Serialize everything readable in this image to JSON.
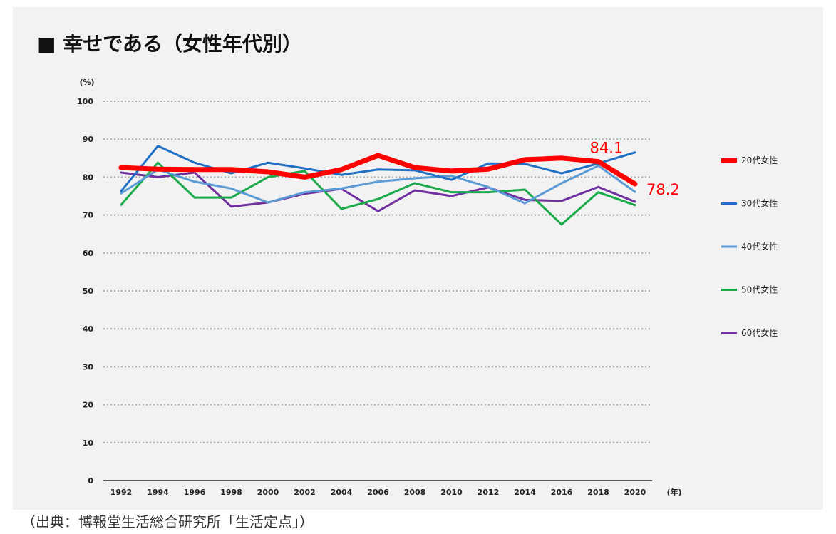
{
  "title": "■ 幸せである（女性年代別）",
  "source": "（出典：博報堂生活総合研究所「生活定点」）",
  "chart_data": {
    "type": "line",
    "title": "■ 幸せである（女性年代別）",
    "ylabel": "(%)",
    "xlabel": "(年)",
    "ylim": [
      0,
      100
    ],
    "yticks": [
      0,
      10,
      20,
      30,
      40,
      50,
      60,
      70,
      80,
      90,
      100
    ],
    "grid": "horizontal dotted",
    "legend": "right",
    "x": [
      1992,
      1994,
      1996,
      1998,
      2000,
      2002,
      2004,
      2006,
      2008,
      2010,
      2012,
      2014,
      2016,
      2018,
      2020
    ],
    "series": [
      {
        "name": "20代女性",
        "color": "#ff0000",
        "values": [
          82.5,
          82.1,
          82,
          82,
          81.4,
          80,
          82,
          85.7,
          82.5,
          81.6,
          82.1,
          84.6,
          85,
          84.1,
          78.2
        ]
      },
      {
        "name": "30代女性",
        "color": "#1f6fc5",
        "values": [
          76.3,
          88.2,
          83.8,
          81,
          83.8,
          82.3,
          80.6,
          82,
          81.8,
          79.3,
          83.6,
          83.5,
          81,
          83.6,
          86.5
        ]
      },
      {
        "name": "40代女性",
        "color": "#5b9bd5",
        "values": [
          75.7,
          82,
          78.8,
          77,
          73.3,
          76,
          77,
          78.8,
          79.7,
          80.3,
          77.4,
          73.1,
          78.4,
          83,
          76.1
        ]
      },
      {
        "name": "50代女性",
        "color": "#1aaa4a",
        "values": [
          72.7,
          83.8,
          74.6,
          74.6,
          80,
          81.6,
          71.6,
          74.2,
          78.4,
          76,
          76,
          76.7,
          67.5,
          76,
          72.6
        ]
      },
      {
        "name": "60代女性",
        "color": "#7030a0",
        "values": [
          81.2,
          80,
          81.2,
          72.2,
          73.3,
          75.6,
          76.9,
          71,
          76.5,
          75,
          77.3,
          74,
          73.7,
          77.4,
          73.5
        ]
      }
    ],
    "annotations": [
      {
        "x": 2018,
        "series": "20代女性",
        "text": "84.1"
      },
      {
        "x": 2020,
        "series": "20代女性",
        "text": "78.2"
      }
    ]
  }
}
